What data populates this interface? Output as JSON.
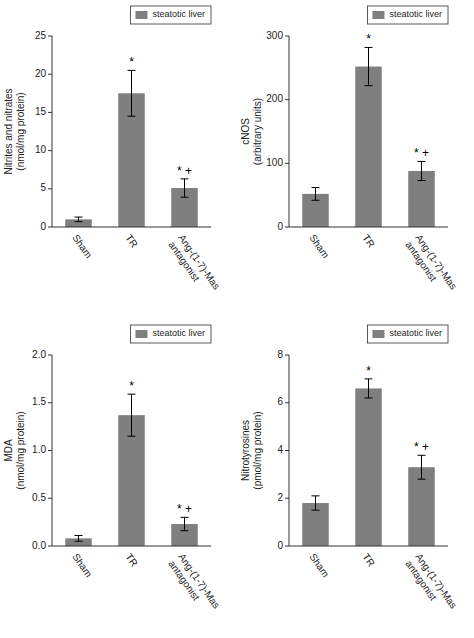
{
  "chart_data": [
    {
      "type": "bar",
      "y_label": "Nitrites and nitrates\n(nmol/mg protein)",
      "categories": [
        "Sham",
        "TR",
        "Ang-(1-7)-Mas\nantagonist"
      ],
      "series": [
        {
          "name": "steatotic liver",
          "color": "#7f7f7f",
          "values": [
            1.0,
            17.5,
            5.1
          ],
          "errors": [
            0.3,
            3.0,
            1.2
          ]
        }
      ],
      "annotations": [
        null,
        "*",
        "* +"
      ],
      "ylim": [
        0,
        25
      ],
      "yticks": [
        0,
        5,
        10,
        15,
        20,
        25
      ],
      "grid": false,
      "legend": "upper right"
    },
    {
      "type": "bar",
      "y_label": "cNOS\n(arbitrary units)",
      "categories": [
        "Sham",
        "TR",
        "Ang-(1-7)-Mas\nantagonist"
      ],
      "series": [
        {
          "name": "steatotic liver",
          "color": "#7f7f7f",
          "values": [
            52,
            252,
            88
          ],
          "errors": [
            10,
            30,
            15
          ]
        }
      ],
      "annotations": [
        null,
        "*",
        "* +"
      ],
      "ylim": [
        0,
        300
      ],
      "yticks": [
        0,
        100,
        200,
        300
      ],
      "grid": false,
      "legend": "upper right"
    },
    {
      "type": "bar",
      "y_label": "MDA\n(nmol/mg protein)",
      "categories": [
        "Sham",
        "TR",
        "Ang-(1-7)-Mas\nantagonist"
      ],
      "series": [
        {
          "name": "steatotic liver",
          "color": "#7f7f7f",
          "values": [
            0.08,
            1.37,
            0.23
          ],
          "errors": [
            0.03,
            0.22,
            0.07
          ]
        }
      ],
      "annotations": [
        null,
        "*",
        "* +"
      ],
      "ylim": [
        0,
        2.0
      ],
      "yticks": [
        {
          "value": 0,
          "label": "0.0"
        },
        0.5,
        {
          "value": 1,
          "label": "1.0"
        },
        1.5,
        {
          "value": 2,
          "label": "2.0"
        }
      ],
      "grid": false,
      "legend": "upper right"
    },
    {
      "type": "bar",
      "y_label": "Nitrotyrosines\n(pmol/mg protein)",
      "categories": [
        "Sham",
        "TR",
        "Ang-(1-7)-Mas\nantagonist"
      ],
      "series": [
        {
          "name": "steatotic liver",
          "color": "#7f7f7f",
          "values": [
            1.8,
            6.6,
            3.3
          ],
          "errors": [
            0.3,
            0.4,
            0.5
          ]
        }
      ],
      "annotations": [
        null,
        "*",
        "* +"
      ],
      "ylim": [
        0,
        8
      ],
      "yticks": [
        0,
        2,
        4,
        6,
        8
      ],
      "grid": false,
      "legend": "upper right"
    }
  ]
}
